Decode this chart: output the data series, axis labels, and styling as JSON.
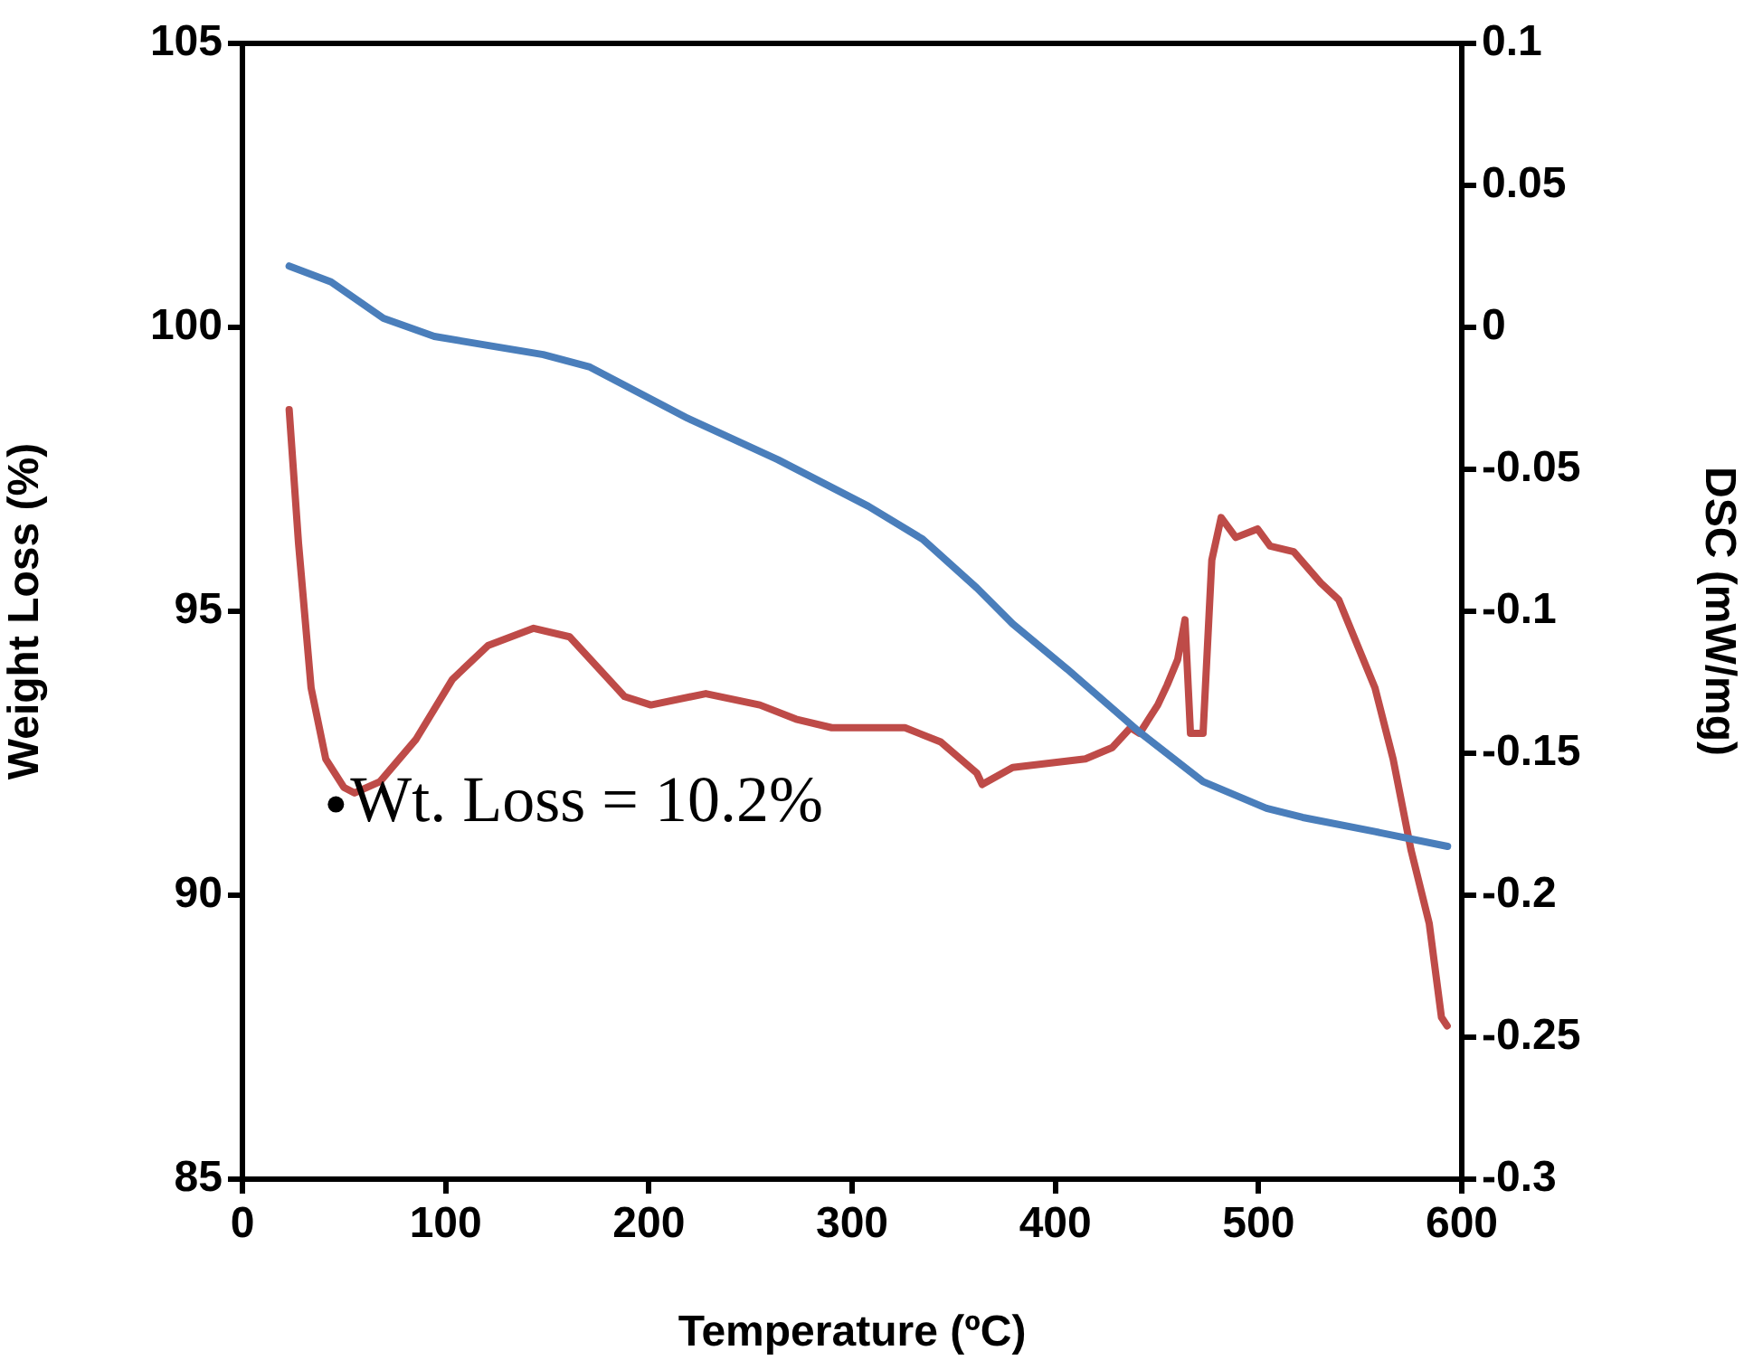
{
  "chart_data": {
    "type": "line",
    "xlabel": "Temperature (ºC)",
    "ylabel": "Weight Loss (%)",
    "y2label": "DSC (mW/mg)",
    "xlim": [
      0,
      600
    ],
    "xticks": [
      0,
      100,
      200,
      300,
      400,
      500,
      600
    ],
    "ylim": [
      85,
      105
    ],
    "yticks": [
      85,
      90,
      95,
      100,
      105
    ],
    "y2lim": [
      -0.3,
      0.1
    ],
    "y2ticks": [
      -0.3,
      -0.25,
      -0.2,
      -0.15,
      -0.1,
      -0.05,
      0,
      0.05,
      0.1
    ],
    "grid": false,
    "legend": false,
    "marker": "none",
    "line_style": "solid",
    "annotations": [
      {
        "text": "Wt. Loss = 10.2%",
        "x": 46,
        "y": 91.6
      }
    ],
    "series": [
      {
        "color": "#4a7ebb",
        "x": [
          23,
          43.6,
          69.4,
          94.4,
          148,
          171,
          219,
          263.5,
          308,
          334.7,
          361.4,
          379,
          405.9,
          441.5,
          472.7,
          503.9,
          521.7,
          557.3,
          593
        ],
        "values": [
          101.08,
          100.8,
          100.16,
          99.84,
          99.52,
          99.3,
          98.4,
          97.67,
          96.85,
          96.27,
          95.41,
          94.78,
          93.98,
          92.87,
          92.0,
          91.53,
          91.37,
          91.12,
          90.86
        ]
      },
      {
        "color": "#be4b48",
        "axis": "y2",
        "x": [
          23,
          27.6,
          33.8,
          41,
          49.9,
          55.2,
          67.7,
          85.5,
          103.3,
          121,
          143.3,
          161,
          188,
          201,
          228,
          254.6,
          272.4,
          290,
          308,
          326,
          343.6,
          361.4,
          364,
          379,
          414.8,
          428,
          437,
          441.5,
          450.4,
          455,
          460.2,
          463.8,
          466.5,
          472.7,
          477,
          481.6,
          488.8,
          499.5,
          505.7,
          517.3,
          530.6,
          539.5,
          557.3,
          566.2,
          575,
          584,
          590,
          592.8
        ],
        "values": [
          -0.029,
          -0.076,
          -0.127,
          -0.152,
          -0.162,
          -0.164,
          -0.16,
          -0.145,
          -0.124,
          -0.112,
          -0.106,
          -0.109,
          -0.13,
          -0.133,
          -0.129,
          -0.133,
          -0.138,
          -0.141,
          -0.141,
          -0.141,
          -0.146,
          -0.157,
          -0.161,
          -0.155,
          -0.152,
          -0.148,
          -0.141,
          -0.143,
          -0.133,
          -0.126,
          -0.117,
          -0.103,
          -0.143,
          -0.143,
          -0.082,
          -0.067,
          -0.074,
          -0.071,
          -0.077,
          -0.079,
          -0.09,
          -0.096,
          -0.127,
          -0.152,
          -0.184,
          -0.21,
          -0.243,
          -0.246
        ]
      }
    ]
  }
}
